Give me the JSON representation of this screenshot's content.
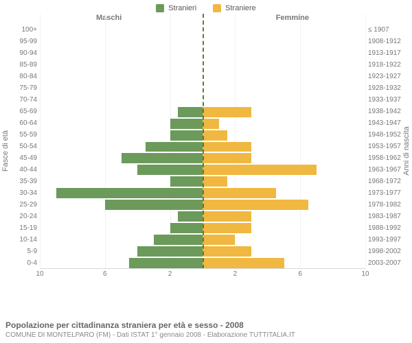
{
  "legend": {
    "items": [
      {
        "label": "Stranieri",
        "color": "#6b9a5b"
      },
      {
        "label": "Straniere",
        "color": "#f0b840"
      }
    ]
  },
  "headers": {
    "left": "Maschi",
    "right": "Femmine"
  },
  "axis_titles": {
    "left": "Fasce di età",
    "right": "Anni di nascita"
  },
  "chart": {
    "type": "population-pyramid",
    "xlim": [
      0,
      10
    ],
    "xticks": [
      10,
      6,
      2,
      2,
      6,
      10
    ],
    "bar_color_left": "#6b9a5b",
    "bar_color_right": "#f0b840",
    "center_line_color": "#5a7a3a",
    "grid_color": "#f2f2f2",
    "background_color": "#ffffff",
    "rows": [
      {
        "age": "100+",
        "birth": "≤ 1907",
        "m": 0,
        "f": 0
      },
      {
        "age": "95-99",
        "birth": "1908-1912",
        "m": 0,
        "f": 0
      },
      {
        "age": "90-94",
        "birth": "1913-1917",
        "m": 0,
        "f": 0
      },
      {
        "age": "85-89",
        "birth": "1918-1922",
        "m": 0,
        "f": 0
      },
      {
        "age": "80-84",
        "birth": "1923-1927",
        "m": 0,
        "f": 0
      },
      {
        "age": "75-79",
        "birth": "1928-1932",
        "m": 0,
        "f": 0
      },
      {
        "age": "70-74",
        "birth": "1933-1937",
        "m": 0,
        "f": 0
      },
      {
        "age": "65-69",
        "birth": "1938-1942",
        "m": 1.5,
        "f": 3
      },
      {
        "age": "60-64",
        "birth": "1943-1947",
        "m": 2,
        "f": 1
      },
      {
        "age": "55-59",
        "birth": "1948-1952",
        "m": 2,
        "f": 1.5
      },
      {
        "age": "50-54",
        "birth": "1953-1957",
        "m": 3.5,
        "f": 3
      },
      {
        "age": "45-49",
        "birth": "1958-1962",
        "m": 5,
        "f": 3
      },
      {
        "age": "40-44",
        "birth": "1963-1967",
        "m": 4,
        "f": 7
      },
      {
        "age": "35-39",
        "birth": "1968-1972",
        "m": 2,
        "f": 1.5
      },
      {
        "age": "30-34",
        "birth": "1973-1977",
        "m": 9,
        "f": 4.5
      },
      {
        "age": "25-29",
        "birth": "1978-1982",
        "m": 6,
        "f": 6.5
      },
      {
        "age": "20-24",
        "birth": "1983-1987",
        "m": 1.5,
        "f": 3
      },
      {
        "age": "15-19",
        "birth": "1988-1992",
        "m": 2,
        "f": 3
      },
      {
        "age": "10-14",
        "birth": "1993-1997",
        "m": 3,
        "f": 2
      },
      {
        "age": "5-9",
        "birth": "1998-2002",
        "m": 4,
        "f": 3
      },
      {
        "age": "0-4",
        "birth": "2003-2007",
        "m": 4.5,
        "f": 5
      }
    ]
  },
  "footer": {
    "title": "Popolazione per cittadinanza straniera per età e sesso - 2008",
    "subtitle": "COMUNE DI MONTELPARO (FM) - Dati ISTAT 1° gennaio 2008 - Elaborazione TUTTITALIA.IT"
  }
}
